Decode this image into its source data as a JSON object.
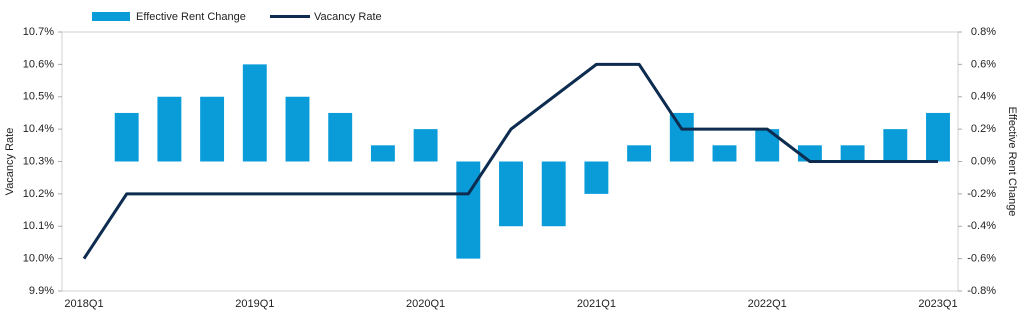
{
  "chart_data": {
    "type": "bar-line",
    "categories": [
      "2018Q1",
      null,
      null,
      null,
      "2019Q1",
      null,
      null,
      null,
      "2020Q1",
      null,
      null,
      null,
      "2021Q1",
      null,
      null,
      null,
      "2022Q1",
      null,
      null,
      null,
      "2023Q1"
    ],
    "series": [
      {
        "name": "Effective Rent Change",
        "type": "bar",
        "axis": "y2",
        "color": "#0a9cd8",
        "values": [
          0,
          0.3,
          0.4,
          0.4,
          0.6,
          0.4,
          0.3,
          0.1,
          0.2,
          -0.6,
          -0.4,
          -0.4,
          -0.2,
          0.1,
          0.3,
          0.1,
          0.2,
          0.1,
          0.1,
          0.2,
          0.3
        ]
      },
      {
        "name": "Vacancy Rate",
        "type": "line",
        "axis": "y",
        "color": "#0d2c4f",
        "values": [
          10.0,
          10.2,
          10.2,
          10.2,
          10.2,
          10.2,
          10.2,
          10.2,
          10.2,
          10.2,
          10.4,
          10.5,
          10.6,
          10.6,
          10.4,
          10.4,
          10.4,
          10.3,
          10.3,
          10.3,
          10.3
        ]
      }
    ],
    "ylabel": "Vacancy Rate",
    "y2label": "Effective Rent Change",
    "ylim": [
      9.9,
      10.7
    ],
    "yticks": [
      {
        "value": 9.9,
        "label": "9.9%"
      },
      {
        "value": 10.0,
        "label": "10.0%"
      },
      {
        "value": 10.1,
        "label": "10.1%"
      },
      {
        "value": 10.2,
        "label": "10.2%"
      },
      {
        "value": 10.3,
        "label": "10.3%"
      },
      {
        "value": 10.4,
        "label": "10.4%"
      },
      {
        "value": 10.5,
        "label": "10.5%"
      },
      {
        "value": 10.6,
        "label": "10.6%"
      },
      {
        "value": 10.7,
        "label": "10.7%"
      }
    ],
    "y2lim": [
      -0.8,
      0.8
    ],
    "y2ticks": [
      {
        "value": -0.8,
        "label": "-0.8%"
      },
      {
        "value": -0.6,
        "label": "-0.6%"
      },
      {
        "value": -0.4,
        "label": "-0.4%"
      },
      {
        "value": -0.2,
        "label": "-0.2%"
      },
      {
        "value": 0.0,
        "label": "0.0%"
      },
      {
        "value": 0.2,
        "label": "0.2%"
      },
      {
        "value": 0.4,
        "label": "0.4%"
      },
      {
        "value": 0.6,
        "label": "0.6%"
      },
      {
        "value": 0.8,
        "label": "0.8%"
      }
    ],
    "legend": "top"
  }
}
